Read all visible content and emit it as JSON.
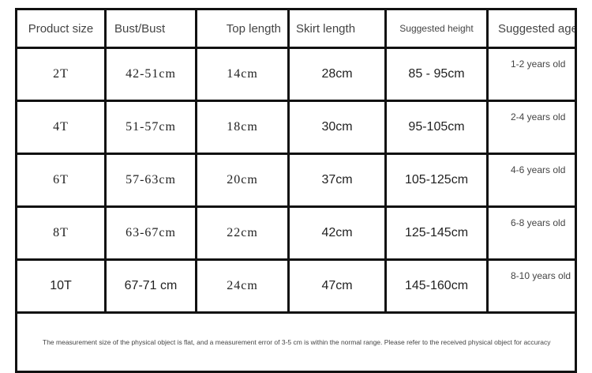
{
  "headers": [
    "Product size",
    "Bust/Bust",
    "Top length",
    "Skirt length",
    "Suggested height",
    "Suggested age"
  ],
  "rows": [
    [
      "2T",
      "42-51cm",
      "14cm",
      "28cm",
      "85 - 95cm",
      "1-2 years old"
    ],
    [
      "4T",
      "51-57cm",
      "18cm",
      "30cm",
      "95-105cm",
      "2-4 years old"
    ],
    [
      "6T",
      "57-63cm",
      "20cm",
      "37cm",
      "105-125cm",
      "4-6 years old"
    ],
    [
      "8T",
      "63-67cm",
      "22cm",
      "42cm",
      "125-145cm",
      "6-8 years old"
    ],
    [
      "10T",
      "67-71 cm",
      "24cm",
      "47cm",
      "145-160cm",
      "8-10 years old"
    ]
  ],
  "note": "The measurement size of the physical object is flat, and a measurement error of 3-5 cm is within the normal range. Please refer to the received physical object for accuracy"
}
